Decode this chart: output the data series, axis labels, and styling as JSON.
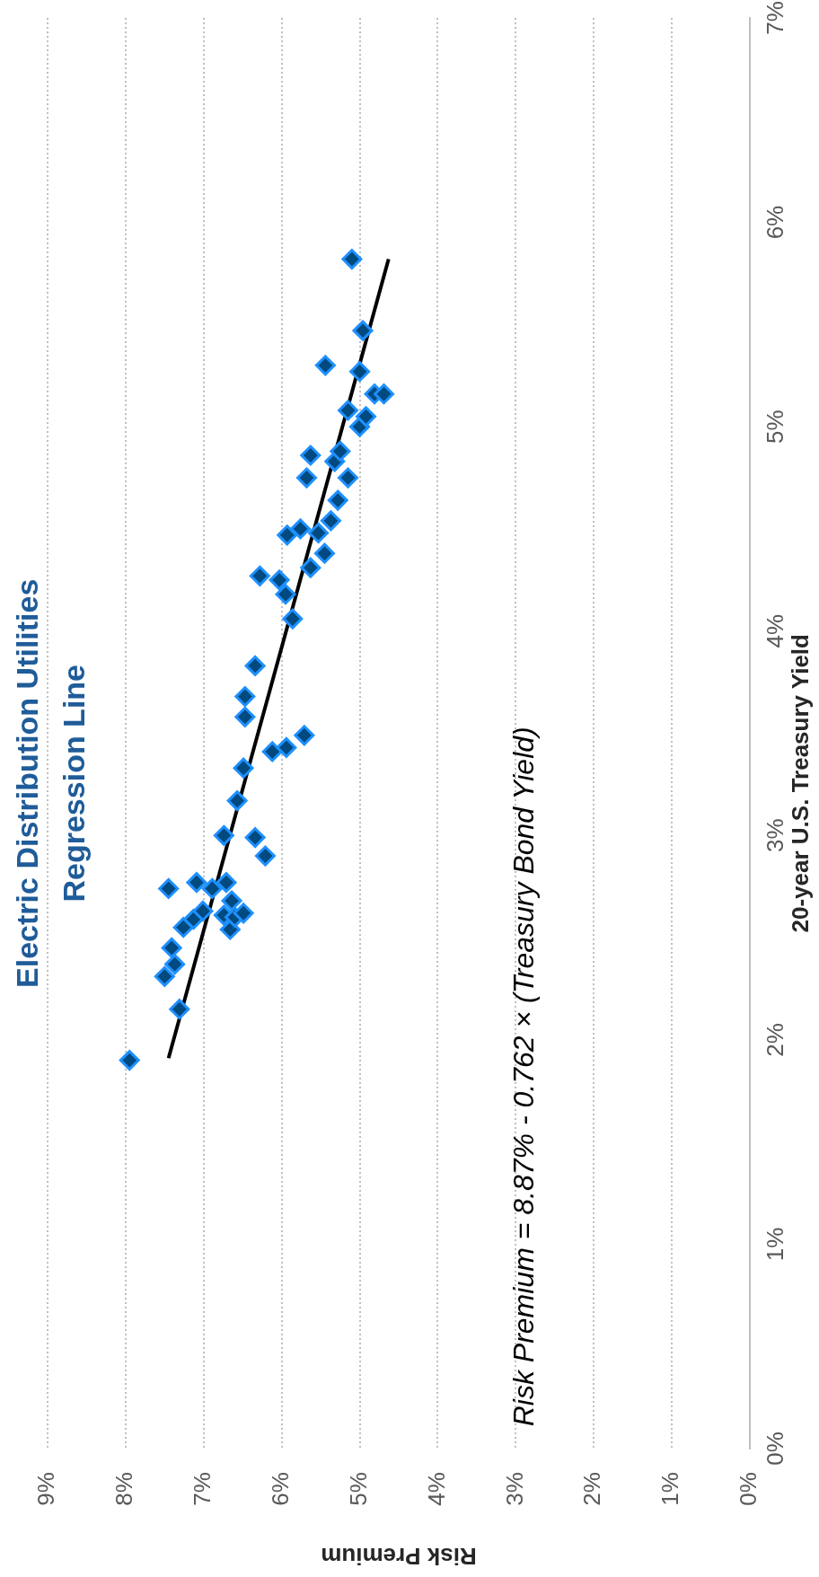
{
  "chart_data": {
    "type": "scatter",
    "title": "Electric Distribution Utilities",
    "subtitle": "Regression Line",
    "xlabel": "Risk Premium",
    "ylabel": "20-year U.S. Treasury Yield",
    "annotations": [
      "Risk Premium = 8.87% - 0.762 × (Treasury Bond Yield)"
    ],
    "xlim": [
      9,
      0
    ],
    "xticks": [
      {
        "value": 9,
        "label": "9%"
      },
      {
        "value": 8,
        "label": "8%"
      },
      {
        "value": 7,
        "label": "7%"
      },
      {
        "value": 6,
        "label": "6%"
      },
      {
        "value": 5,
        "label": "5%"
      },
      {
        "value": 4,
        "label": "4%"
      },
      {
        "value": 3,
        "label": "3%"
      },
      {
        "value": 2,
        "label": "2%"
      },
      {
        "value": 1,
        "label": "1%"
      },
      {
        "value": 0,
        "label": "0%"
      }
    ],
    "ylim": [
      0,
      7
    ],
    "yticks": [
      {
        "value": 0,
        "label": "0%"
      },
      {
        "value": 1,
        "label": "1%"
      },
      {
        "value": 2,
        "label": "2%"
      },
      {
        "value": 3,
        "label": "3%"
      },
      {
        "value": 4,
        "label": "4%"
      },
      {
        "value": 5,
        "label": "5%"
      },
      {
        "value": 6,
        "label": "6%"
      },
      {
        "value": 7,
        "label": "7%"
      }
    ],
    "grid": "x",
    "legend": false,
    "marker": "diamond",
    "series": [
      {
        "type": "scatter",
        "color": "#004a80",
        "x": [
          7.95,
          7.31,
          7.5,
          7.37,
          7.41,
          7.26,
          7.45,
          7.13,
          7.01,
          7.09,
          6.89,
          6.74,
          6.66,
          6.6,
          6.49,
          6.64,
          6.71,
          6.74,
          6.34,
          6.21,
          6.57,
          6.49,
          6.12,
          5.94,
          5.71,
          6.47,
          6.47,
          6.34,
          5.86,
          5.95,
          6.03,
          6.28,
          5.63,
          5.93,
          5.76,
          5.53,
          5.45,
          5.37,
          5.28,
          5.68,
          5.15,
          5.63,
          5.32,
          5.25,
          5.0,
          5.15,
          4.92,
          4.81,
          4.69,
          5.44,
          5.0,
          4.96,
          5.1
        ],
        "values": [
          1.9,
          2.15,
          2.31,
          2.37,
          2.45,
          2.55,
          2.74,
          2.59,
          2.63,
          2.77,
          2.74,
          2.61,
          2.54,
          2.6,
          2.62,
          2.68,
          2.77,
          3.0,
          2.99,
          2.9,
          3.17,
          3.33,
          3.41,
          3.43,
          3.49,
          3.58,
          3.68,
          3.83,
          4.06,
          4.18,
          4.25,
          4.27,
          4.31,
          4.47,
          4.5,
          4.48,
          4.38,
          4.54,
          4.64,
          4.75,
          4.75,
          4.86,
          4.83,
          4.88,
          5.0,
          5.08,
          5.05,
          5.16,
          5.16,
          5.3,
          5.27,
          5.47,
          5.82
        ]
      },
      {
        "type": "line",
        "color": "#000000",
        "marker": "none",
        "x": [
          7.45,
          4.63
        ],
        "values": [
          1.91,
          5.82
        ]
      }
    ]
  }
}
